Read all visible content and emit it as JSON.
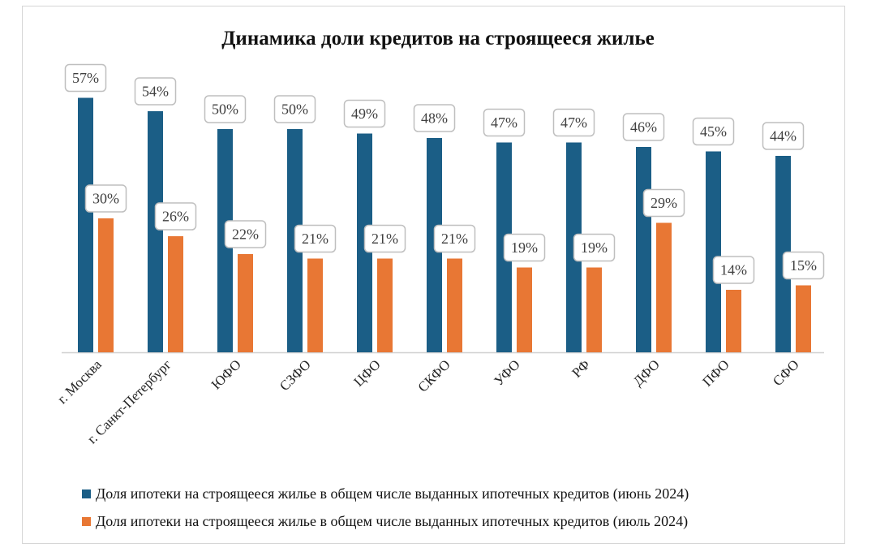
{
  "chart_data": {
    "type": "bar",
    "title": "Динамика доли кредитов на строящееся жилье",
    "xlabel": "",
    "ylabel": "",
    "ylim": [
      0,
      60
    ],
    "grid": false,
    "legend_position": "bottom",
    "categories": [
      "г. Москва",
      "г. Санкт-Петербург",
      "ЮФО",
      "СЗФО",
      "ЦФО",
      "СКФО",
      "УФО",
      "РФ",
      "ДФО",
      "ПФО",
      "СФО"
    ],
    "series": [
      {
        "name": "Доля ипотеки на строящееся жилье в общем числе выданных ипотечных кредитов (июнь 2024)",
        "color": "#1b5e86",
        "values": [
          57,
          54,
          50,
          50,
          49,
          48,
          47,
          47,
          46,
          45,
          44
        ],
        "labels": [
          "57%",
          "54%",
          "50%",
          "50%",
          "49%",
          "48%",
          "47%",
          "47%",
          "46%",
          "45%",
          "44%"
        ]
      },
      {
        "name": "Доля ипотеки на строящееся жилье в общем числе выданных ипотечных кредитов (июль 2024)",
        "color": "#e87734",
        "values": [
          30,
          26,
          22,
          21,
          21,
          21,
          19,
          19,
          29,
          14,
          15
        ],
        "labels": [
          "30%",
          "26%",
          "22%",
          "21%",
          "21%",
          "21%",
          "19%",
          "19%",
          "29%",
          "14%",
          "15%"
        ]
      }
    ]
  }
}
